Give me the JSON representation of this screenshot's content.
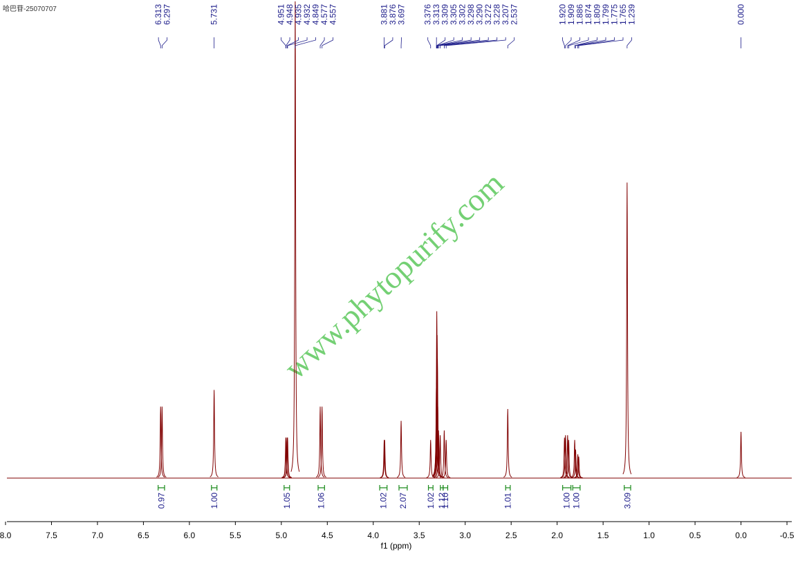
{
  "chart_data": {
    "type": "spectrum",
    "title": "哈巴苷-25070707",
    "x_label": "f1 (ppm)",
    "watermark": "www.phytopurify.com",
    "color": "#800000",
    "label_color": "#1c1c8a",
    "integral_color": "#1a8a1a",
    "xlim": [
      8.06,
      -0.62
    ],
    "ylim": [
      0,
      100
    ],
    "xticks": [
      {
        "value": 8.0,
        "label": "8.0"
      },
      {
        "value": 7.5,
        "label": "7.5"
      },
      {
        "value": 7.0,
        "label": "7.0"
      },
      {
        "value": 6.5,
        "label": "6.5"
      },
      {
        "value": 6.0,
        "label": "6.0"
      },
      {
        "value": 5.5,
        "label": "5.5"
      },
      {
        "value": 5.0,
        "label": "5.0"
      },
      {
        "value": 4.5,
        "label": "4.5"
      },
      {
        "value": 4.0,
        "label": "4.0"
      },
      {
        "value": 3.5,
        "label": "3.5"
      },
      {
        "value": 3.0,
        "label": "3.0"
      },
      {
        "value": 2.5,
        "label": "2.5"
      },
      {
        "value": 2.0,
        "label": "2.0"
      },
      {
        "value": 1.5,
        "label": "1.5"
      },
      {
        "value": 1.0,
        "label": "1.0"
      },
      {
        "value": 0.5,
        "label": "0.5"
      },
      {
        "value": 0.0,
        "label": "0.0"
      },
      {
        "value": -0.5,
        "label": "-0.5"
      }
    ],
    "peaks": {
      "x": [
        6.313,
        6.297,
        5.731,
        4.951,
        4.948,
        4.935,
        4.932,
        4.849,
        4.577,
        4.557,
        3.881,
        3.876,
        3.697,
        3.376,
        3.313,
        3.309,
        3.305,
        3.302,
        3.298,
        3.29,
        3.272,
        3.228,
        3.207,
        2.537,
        1.92,
        1.909,
        1.886,
        1.874,
        1.809,
        1.799,
        1.775,
        1.765,
        1.239,
        0.0
      ],
      "labels": [
        "6.313",
        "6.297",
        "5.731",
        "4.951",
        "4.948",
        "4.935",
        "4.932",
        "4.849",
        "4.577",
        "4.557",
        "3.881",
        "3.876",
        "3.697",
        "3.376",
        "3.313",
        "3.309",
        "3.305",
        "3.302",
        "3.298",
        "3.290",
        "3.272",
        "3.228",
        "3.207",
        "2.537",
        "1.920",
        "1.909",
        "1.886",
        "1.874",
        "1.809",
        "1.799",
        "1.775",
        "1.765",
        "1.239",
        "0.000"
      ],
      "values": [
        15,
        15,
        18.5,
        8.5,
        8.5,
        8.5,
        8.5,
        100,
        15,
        15,
        8,
        8,
        12,
        8,
        20,
        35,
        30,
        25,
        15,
        10,
        9,
        10,
        8,
        14.5,
        8.5,
        9,
        9,
        8,
        8,
        6,
        5,
        4.5,
        62,
        9.7
      ]
    },
    "integrals": {
      "ranges": [
        [
          6.34,
          6.27
        ],
        [
          5.76,
          5.7
        ],
        [
          4.97,
          4.91
        ],
        [
          4.6,
          4.53
        ],
        [
          3.93,
          3.85
        ],
        [
          3.72,
          3.63
        ],
        [
          3.4,
          3.35
        ],
        [
          3.27,
          3.24
        ],
        [
          3.24,
          3.19
        ],
        [
          2.56,
          2.51
        ],
        [
          1.94,
          1.85
        ],
        [
          1.83,
          1.75
        ],
        [
          1.27,
          1.2
        ]
      ],
      "labels": [
        "0.97",
        "1.00",
        "1.05",
        "1.06",
        "1.02",
        "2.07",
        "1.02",
        "1.12",
        "1.10",
        "1.01",
        "1.00",
        "1.00",
        "3.09"
      ]
    }
  }
}
